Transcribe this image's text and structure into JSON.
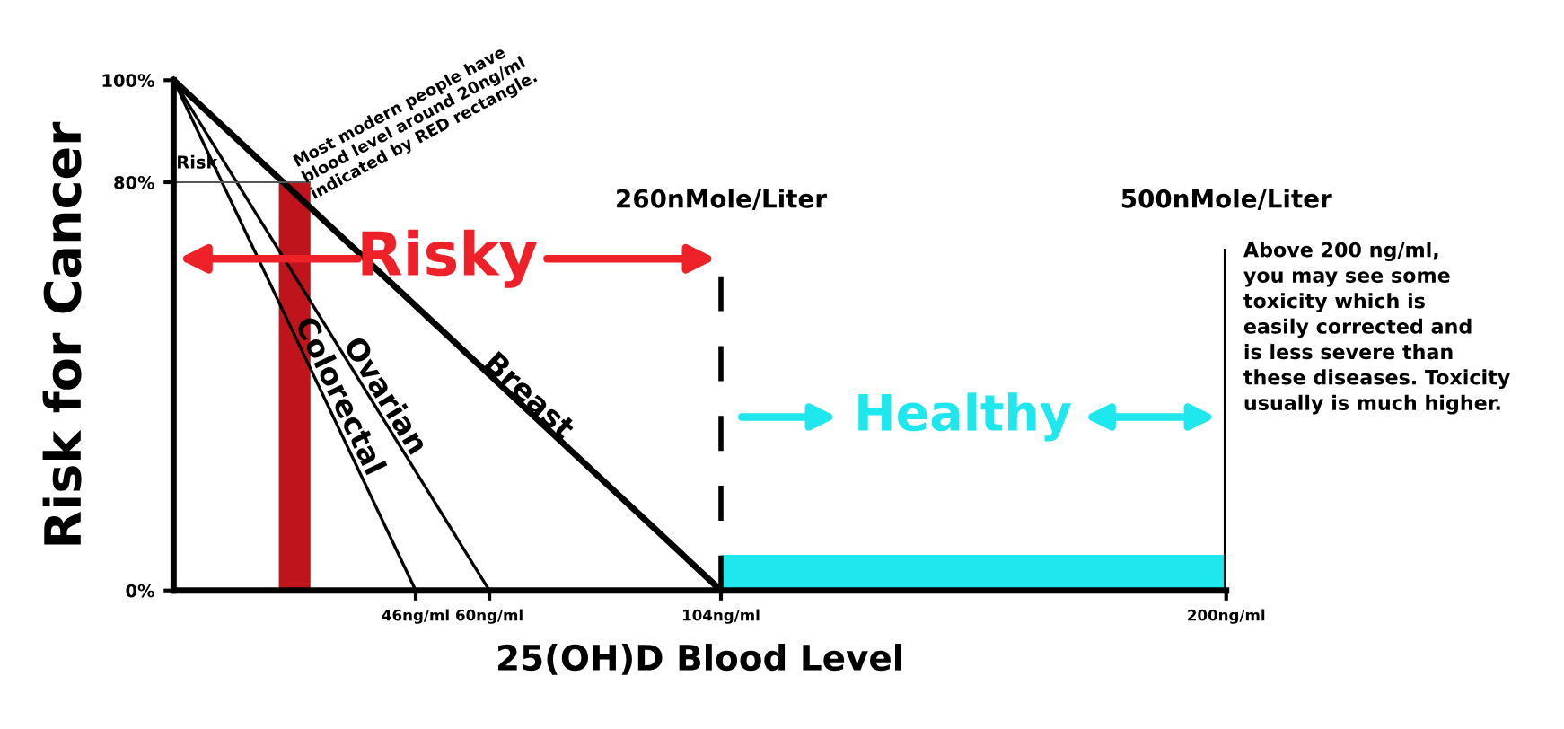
{
  "chart_data": {
    "type": "line",
    "xlabel": "25(OH)D Blood Level",
    "ylabel": "Risk for Cancer",
    "xlim": [
      0,
      200
    ],
    "ylim": [
      0,
      100
    ],
    "xticks": [
      {
        "value": 46,
        "label": "46ng/ml"
      },
      {
        "value": 60,
        "label": "60ng/ml"
      },
      {
        "value": 104,
        "label": "104ng/ml"
      },
      {
        "value": 200,
        "label": "200ng/ml"
      }
    ],
    "yticks": [
      {
        "value": 0,
        "label": "0%"
      },
      {
        "value": 80,
        "label": "80%"
      },
      {
        "value": 100,
        "label": "100%"
      }
    ],
    "series": [
      {
        "name": "Colorectal",
        "color": "#000000",
        "x": [
          0,
          46
        ],
        "values": [
          100,
          0
        ]
      },
      {
        "name": "Ovarian",
        "color": "#000000",
        "x": [
          0,
          60
        ],
        "values": [
          100,
          0
        ]
      },
      {
        "name": "Breast",
        "color": "#000000",
        "x": [
          0,
          104
        ],
        "values": [
          100,
          0
        ]
      },
      {
        "type": "area",
        "color": "#c0141c",
        "x": [
          20,
          26
        ],
        "values": [
          80,
          80
        ]
      },
      {
        "type": "area",
        "color": "#1ee8ee",
        "x": [
          104,
          200
        ],
        "values": [
          7,
          7
        ]
      }
    ],
    "ref_lines": [
      {
        "axis": "y",
        "value": 80,
        "label": "Risk",
        "color": "#555555"
      },
      {
        "axis": "x",
        "value": 104,
        "label": "260nMole/Liter",
        "color": "#000000",
        "line_style": "dashed"
      },
      {
        "axis": "x",
        "value": 200,
        "label": "500nMole/Liter",
        "color": "#000000",
        "line_style": "solid"
      }
    ],
    "annotations": [
      "Risky",
      "Healthy",
      "Most modern people have\nblood level around 20ng/ml\nindicated by RED rectangle.",
      "Above 200 ng/ml,\nyou may see some\ntoxicity which is\neasily corrected and\nis less severe than\nthese diseases. Toxicity\nusually is much higher."
    ],
    "grid": false,
    "legend": false,
    "marker": "none",
    "line_style": "solid"
  }
}
